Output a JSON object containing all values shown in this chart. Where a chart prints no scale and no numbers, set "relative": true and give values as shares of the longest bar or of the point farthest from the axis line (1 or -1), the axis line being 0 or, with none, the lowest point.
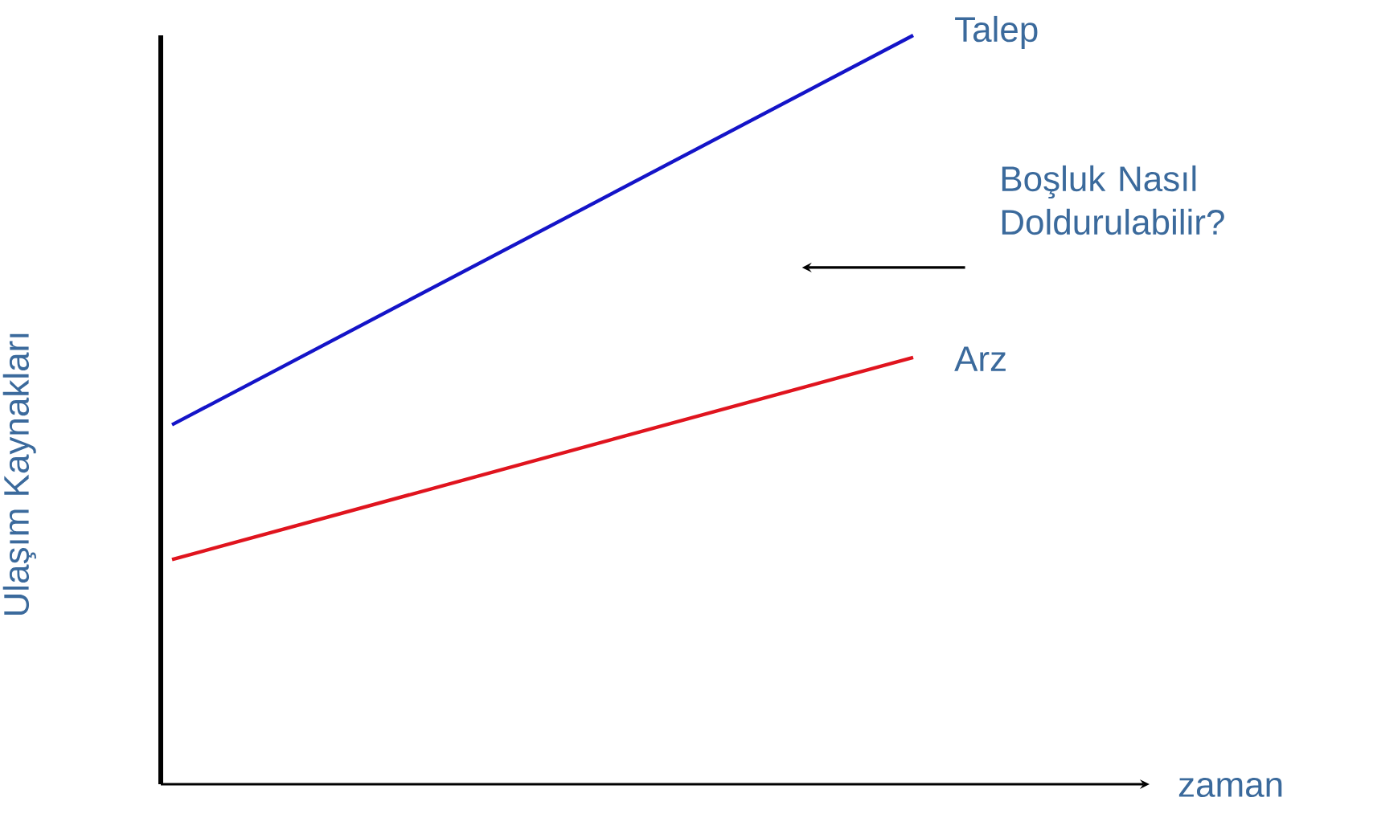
{
  "chart_data": {
    "type": "line",
    "relative": true,
    "categories": [
      null,
      null
    ],
    "xlabel": "zaman",
    "ylabel": "Ulaşım Kaynakları",
    "series": [
      {
        "name": "Talep",
        "color": "#1414c8",
        "values": [
          0.48,
          1
        ]
      },
      {
        "name": "Arz",
        "color": "#e0141e",
        "values": [
          0.3,
          0.57
        ]
      }
    ],
    "annotations": [
      "Boşluk Nasıl Doldurulabilir?"
    ],
    "marker": "none",
    "line_style": "solid"
  }
}
